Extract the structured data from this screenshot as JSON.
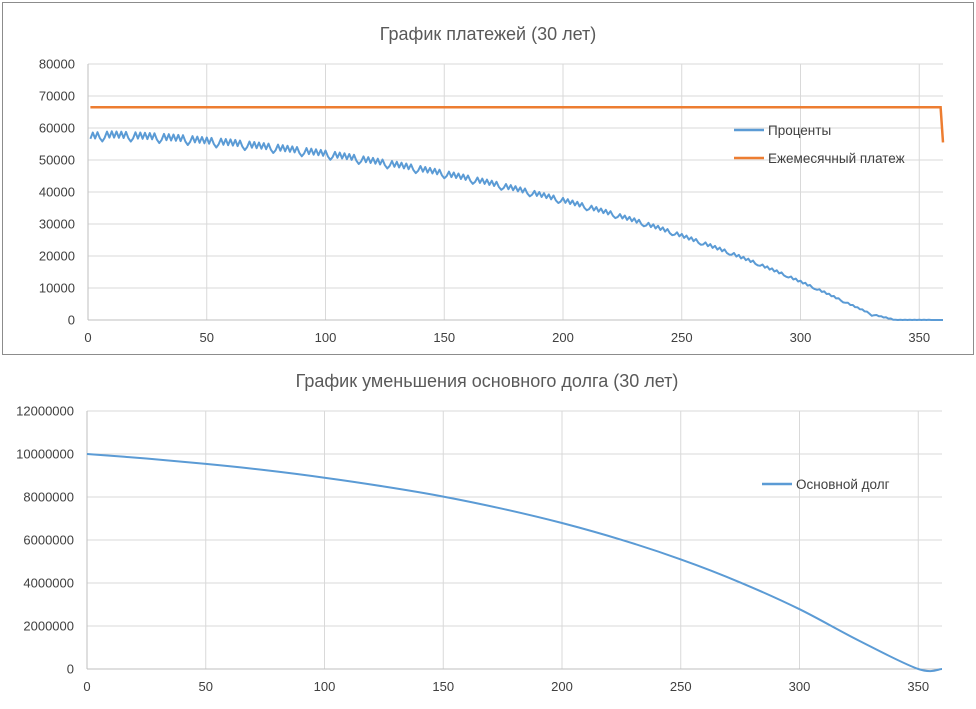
{
  "chart_data": [
    {
      "type": "line",
      "title": "График платежей (30 лет)",
      "xlim": [
        0,
        360
      ],
      "ylim": [
        0,
        80000
      ],
      "x_ticks": [
        0,
        50,
        100,
        150,
        200,
        250,
        300,
        350
      ],
      "y_ticks": [
        0,
        10000,
        20000,
        30000,
        40000,
        50000,
        60000,
        70000,
        80000
      ],
      "grid": true,
      "legend_position": "right",
      "colors": {
        "interest": "#5b9bd5",
        "payment": "#ed7d31"
      },
      "series": [
        {
          "name": "Проценты",
          "x": [
            1,
            10,
            20,
            30,
            40,
            50,
            60,
            70,
            80,
            90,
            100,
            110,
            120,
            130,
            140,
            150,
            160,
            170,
            180,
            190,
            200,
            210,
            220,
            230,
            240,
            250,
            260,
            270,
            280,
            290,
            300,
            310,
            320,
            330,
            340,
            350,
            359
          ],
          "values": [
            57600,
            58000,
            57700,
            57300,
            56800,
            56100,
            55500,
            54700,
            53900,
            53000,
            52100,
            51000,
            49800,
            48600,
            47300,
            45900,
            44400,
            42800,
            41100,
            39300,
            37500,
            35500,
            33400,
            31200,
            28900,
            26400,
            23800,
            21100,
            18200,
            15200,
            12000,
            8700,
            5200,
            1800,
            0,
            0,
            0
          ],
          "note_values_read_by_eye": true
        },
        {
          "name": "Ежемесячный платеж",
          "x": [
            1,
            359,
            360
          ],
          "values": [
            66500,
            66500,
            55500
          ]
        }
      ]
    },
    {
      "type": "line",
      "title": "График уменьшения основного долга (30 лет)",
      "xlim": [
        0,
        360
      ],
      "ylim": [
        0,
        12000000
      ],
      "x_ticks": [
        0,
        50,
        100,
        150,
        200,
        250,
        300,
        350
      ],
      "y_ticks": [
        0,
        2000000,
        4000000,
        6000000,
        8000000,
        10000000,
        12000000
      ],
      "grid": true,
      "legend_position": "right",
      "colors": {
        "principal": "#5b9bd5"
      },
      "series": [
        {
          "name": "Основной долг",
          "x": [
            0,
            25,
            50,
            75,
            100,
            125,
            150,
            175,
            200,
            225,
            250,
            275,
            300,
            325,
            350,
            360
          ],
          "values": [
            10000000,
            9790000,
            9540000,
            9250000,
            8900000,
            8490000,
            8020000,
            7450000,
            6790000,
            6010000,
            5100000,
            4030000,
            2780000,
            1320000,
            0,
            0
          ]
        }
      ]
    }
  ]
}
